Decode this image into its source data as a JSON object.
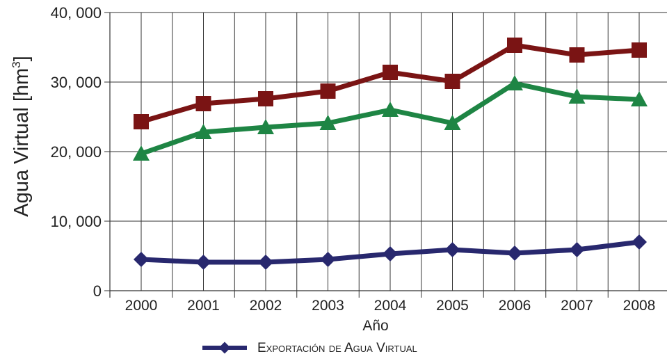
{
  "chart_data": {
    "type": "line",
    "xlabel": "Año",
    "ylabel": "Agua Virtual [hm",
    "ylabel_sup": "3",
    "ylabel_close": "]",
    "categories": [
      "2000",
      "2001",
      "2002",
      "2003",
      "2004",
      "2005",
      "2006",
      "2007",
      "2008"
    ],
    "ylim": [
      0,
      40000
    ],
    "yticks": [
      {
        "value": 0,
        "label": "0"
      },
      {
        "value": 10000,
        "label": "10, 000"
      },
      {
        "value": 20000,
        "label": "20, 000"
      },
      {
        "value": 30000,
        "label": "30, 000"
      },
      {
        "value": 40000,
        "label": "40, 000"
      }
    ],
    "grid": true,
    "legend_position": "bottom",
    "series": [
      {
        "name": "",
        "color": "#7a1414",
        "marker": "square",
        "values": [
          24300,
          26900,
          27600,
          28700,
          31400,
          30100,
          35300,
          33900,
          34600
        ]
      },
      {
        "name": "",
        "color": "#1e8544",
        "marker": "triangle",
        "values": [
          19700,
          22800,
          23500,
          24100,
          26000,
          24100,
          29800,
          27900,
          27500
        ]
      },
      {
        "name": "Exportación de Agua Virtual",
        "color": "#28286e",
        "marker": "diamond",
        "values": [
          4500,
          4100,
          4100,
          4500,
          5300,
          5900,
          5400,
          5900,
          7000
        ]
      }
    ]
  }
}
